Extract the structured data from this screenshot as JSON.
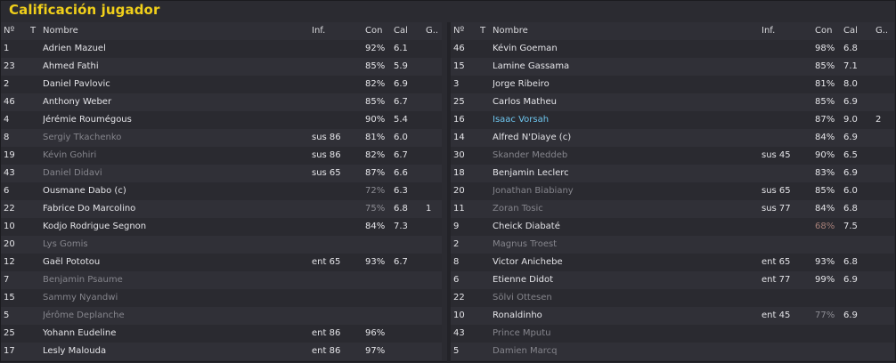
{
  "title": "Calificación jugador",
  "columns": {
    "num": "Nº",
    "t": "T",
    "name": "Nombre",
    "inf": "Inf.",
    "con": "Con",
    "cal": "Cal",
    "g": "G.."
  },
  "left": [
    {
      "num": "1",
      "name": "Adrien Mazuel",
      "inf": "",
      "con": "92%",
      "cal": "6.1",
      "g": "",
      "style": "normal",
      "icon": "",
      "con_style": ""
    },
    {
      "num": "23",
      "name": "Ahmed Fathi",
      "inf": "",
      "con": "85%",
      "cal": "5.9",
      "g": "",
      "style": "normal",
      "icon": "yellow-card",
      "con_style": ""
    },
    {
      "num": "2",
      "name": "Daniel Pavlovic",
      "inf": "",
      "con": "82%",
      "cal": "6.9",
      "g": "",
      "style": "normal",
      "icon": "",
      "con_style": ""
    },
    {
      "num": "46",
      "name": "Anthony Weber",
      "inf": "",
      "con": "85%",
      "cal": "6.7",
      "g": "",
      "style": "normal",
      "icon": "",
      "con_style": ""
    },
    {
      "num": "4",
      "name": "Jérémie Roumégous",
      "inf": "",
      "con": "90%",
      "cal": "5.4",
      "g": "",
      "style": "normal",
      "icon": "",
      "con_style": ""
    },
    {
      "num": "8",
      "name": "Sergiy Tkachenko",
      "inf": "sus 86",
      "con": "81%",
      "cal": "6.0",
      "g": "",
      "style": "dim",
      "icon": "",
      "con_style": ""
    },
    {
      "num": "19",
      "name": "Kévin Gohiri",
      "inf": "sus 86",
      "con": "82%",
      "cal": "6.7",
      "g": "",
      "style": "dim",
      "icon": "",
      "con_style": ""
    },
    {
      "num": "43",
      "name": "Daniel Didavi",
      "inf": "sus 65",
      "con": "87%",
      "cal": "6.6",
      "g": "",
      "style": "dim",
      "icon": "",
      "con_style": ""
    },
    {
      "num": "6",
      "name": "Ousmane Dabo (c)",
      "inf": "",
      "con": "72%",
      "cal": "6.3",
      "g": "",
      "style": "normal",
      "icon": "",
      "con_style": "dim"
    },
    {
      "num": "22",
      "name": "Fabrice Do Marcolino",
      "inf": "",
      "con": "75%",
      "cal": "6.8",
      "g": "1",
      "style": "normal",
      "icon": "",
      "con_style": "dim"
    },
    {
      "num": "10",
      "name": "Kodjo Rodrigue Segnon",
      "inf": "",
      "con": "84%",
      "cal": "7.3",
      "g": "",
      "style": "normal",
      "icon": "",
      "con_style": ""
    },
    {
      "num": "20",
      "name": "Lys Gomis",
      "inf": "",
      "con": "",
      "cal": "",
      "g": "",
      "style": "dim",
      "icon": "",
      "con_style": ""
    },
    {
      "num": "12",
      "name": "Gaël Pototou",
      "inf": "ent 65",
      "con": "93%",
      "cal": "6.7",
      "g": "",
      "style": "normal",
      "icon": "",
      "con_style": ""
    },
    {
      "num": "7",
      "name": "Benjamin Psaume",
      "inf": "",
      "con": "",
      "cal": "",
      "g": "",
      "style": "dim",
      "icon": "",
      "con_style": ""
    },
    {
      "num": "15",
      "name": "Sammy Nyandwi",
      "inf": "",
      "con": "",
      "cal": "",
      "g": "",
      "style": "dim",
      "icon": "",
      "con_style": ""
    },
    {
      "num": "5",
      "name": "Jérôme Deplanche",
      "inf": "",
      "con": "",
      "cal": "",
      "g": "",
      "style": "dim",
      "icon": "",
      "con_style": ""
    },
    {
      "num": "25",
      "name": "Yohann Eudeline",
      "inf": "ent 86",
      "con": "96%",
      "cal": "",
      "g": "",
      "style": "normal",
      "icon": "",
      "con_style": ""
    },
    {
      "num": "17",
      "name": "Lesly Malouda",
      "inf": "ent 86",
      "con": "97%",
      "cal": "",
      "g": "",
      "style": "normal",
      "icon": "",
      "con_style": ""
    }
  ],
  "right": [
    {
      "num": "46",
      "name": "Kévin Goeman",
      "inf": "",
      "con": "98%",
      "cal": "6.8",
      "g": "",
      "style": "normal",
      "icon": "",
      "con_style": ""
    },
    {
      "num": "15",
      "name": "Lamine Gassama",
      "inf": "",
      "con": "85%",
      "cal": "7.1",
      "g": "",
      "style": "normal",
      "icon": "",
      "con_style": ""
    },
    {
      "num": "3",
      "name": "Jorge Ribeiro",
      "inf": "",
      "con": "81%",
      "cal": "8.0",
      "g": "",
      "style": "normal",
      "icon": "",
      "con_style": ""
    },
    {
      "num": "25",
      "name": "Carlos Matheu",
      "inf": "",
      "con": "85%",
      "cal": "6.9",
      "g": "",
      "style": "normal",
      "icon": "",
      "con_style": ""
    },
    {
      "num": "16",
      "name": "Isaac Vorsah",
      "inf": "",
      "con": "87%",
      "cal": "9.0",
      "g": "2",
      "style": "star",
      "icon": "star",
      "con_style": ""
    },
    {
      "num": "14",
      "name": "Alfred N'Diaye (c)",
      "inf": "",
      "con": "84%",
      "cal": "6.9",
      "g": "",
      "style": "normal",
      "icon": "",
      "con_style": ""
    },
    {
      "num": "30",
      "name": "Skander Meddeb",
      "inf": "sus 45",
      "con": "90%",
      "cal": "6.5",
      "g": "",
      "style": "dim",
      "icon": "",
      "con_style": ""
    },
    {
      "num": "18",
      "name": "Benjamin Leclerc",
      "inf": "",
      "con": "83%",
      "cal": "6.9",
      "g": "",
      "style": "normal",
      "icon": "",
      "con_style": ""
    },
    {
      "num": "20",
      "name": "Jonathan Biabiany",
      "inf": "sus 65",
      "con": "85%",
      "cal": "6.0",
      "g": "",
      "style": "dim",
      "icon": "",
      "con_style": ""
    },
    {
      "num": "11",
      "name": "Zoran Tosic",
      "inf": "sus 77",
      "con": "84%",
      "cal": "6.8",
      "g": "",
      "style": "dim",
      "icon": "yellow-card",
      "con_style": ""
    },
    {
      "num": "9",
      "name": "Cheick Diabaté",
      "inf": "",
      "con": "68%",
      "cal": "7.5",
      "g": "",
      "style": "normal",
      "icon": "sub",
      "con_style": "red"
    },
    {
      "num": "2",
      "name": "Magnus Troest",
      "inf": "",
      "con": "",
      "cal": "",
      "g": "",
      "style": "dim",
      "icon": "",
      "con_style": ""
    },
    {
      "num": "8",
      "name": "Victor Anichebe",
      "inf": "ent 65",
      "con": "93%",
      "cal": "6.8",
      "g": "",
      "style": "normal",
      "icon": "",
      "con_style": ""
    },
    {
      "num": "6",
      "name": "Etienne Didot",
      "inf": "ent 77",
      "con": "99%",
      "cal": "6.9",
      "g": "",
      "style": "normal",
      "icon": "",
      "con_style": ""
    },
    {
      "num": "22",
      "name": "Sölvi Ottesen",
      "inf": "",
      "con": "",
      "cal": "",
      "g": "",
      "style": "dim",
      "icon": "",
      "con_style": ""
    },
    {
      "num": "10",
      "name": "Ronaldinho",
      "inf": "ent 45",
      "con": "77%",
      "cal": "6.9",
      "g": "",
      "style": "normal",
      "icon": "",
      "con_style": "dim"
    },
    {
      "num": "43",
      "name": "Prince Mputu",
      "inf": "",
      "con": "",
      "cal": "",
      "g": "",
      "style": "dim",
      "icon": "",
      "con_style": ""
    },
    {
      "num": "5",
      "name": "Damien Marcq",
      "inf": "",
      "con": "",
      "cal": "",
      "g": "",
      "style": "dim",
      "icon": "",
      "con_style": ""
    }
  ]
}
